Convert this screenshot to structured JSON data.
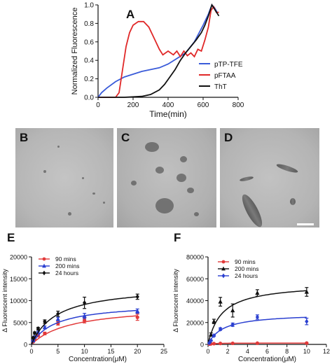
{
  "panel_labels": {
    "a": "A",
    "b": "B",
    "c": "C",
    "d": "D",
    "e": "E",
    "f": "F"
  },
  "chart_data": [
    {
      "id": "A",
      "type": "line",
      "xlabel": "Time(min)",
      "ylabel": "Normalized Fluorescence",
      "xlim": [
        0,
        800
      ],
      "ylim": [
        0.0,
        1.0
      ],
      "xticks": [
        0,
        200,
        400,
        600,
        800
      ],
      "yticks": [
        0.0,
        0.2,
        0.4,
        0.6,
        0.8,
        1.0
      ],
      "x_tick_labels": [
        "0",
        "200",
        "400",
        "600",
        "800"
      ],
      "y_tick_labels": [
        "0.0",
        "0.2",
        "0.4",
        "0.6",
        "0.8",
        "1.0"
      ],
      "legend": "right",
      "series": [
        {
          "name": "pTP-TFE",
          "color": "#3a5bd9",
          "x": [
            0,
            20,
            50,
            100,
            150,
            200,
            250,
            300,
            350,
            400,
            450,
            500,
            550,
            600,
            630,
            650,
            665,
            680
          ],
          "y": [
            0.0,
            0.05,
            0.1,
            0.17,
            0.22,
            0.25,
            0.28,
            0.3,
            0.32,
            0.36,
            0.42,
            0.48,
            0.6,
            0.78,
            0.9,
            1.0,
            0.97,
            0.92
          ]
        },
        {
          "name": "pFTAA",
          "color": "#e02828",
          "x": [
            0,
            50,
            100,
            120,
            140,
            160,
            180,
            200,
            230,
            260,
            290,
            320,
            350,
            370,
            400,
            430,
            450,
            470,
            490,
            510,
            530,
            550,
            570,
            590,
            610,
            630,
            645,
            660,
            675,
            690
          ],
          "y": [
            0.0,
            0.0,
            0.0,
            0.05,
            0.3,
            0.55,
            0.7,
            0.78,
            0.82,
            0.82,
            0.76,
            0.64,
            0.52,
            0.46,
            0.5,
            0.46,
            0.5,
            0.44,
            0.5,
            0.45,
            0.48,
            0.44,
            0.52,
            0.5,
            0.62,
            0.76,
            0.94,
            0.98,
            0.92,
            0.92
          ]
        },
        {
          "name": "ThT",
          "color": "#111111",
          "x": [
            0,
            150,
            250,
            300,
            350,
            380,
            410,
            440,
            470,
            500,
            530,
            560,
            590,
            610,
            630,
            650,
            670,
            690
          ],
          "y": [
            0.0,
            0.0,
            0.01,
            0.03,
            0.08,
            0.14,
            0.22,
            0.3,
            0.4,
            0.48,
            0.55,
            0.62,
            0.7,
            0.78,
            0.88,
            1.0,
            0.94,
            0.88
          ]
        }
      ]
    },
    {
      "id": "E",
      "type": "scatter",
      "xlabel": "Concentration(μM)",
      "ylabel": "Δ Fluorescent intensity",
      "xlim": [
        0,
        25
      ],
      "ylim": [
        0,
        20000
      ],
      "xticks": [
        0,
        5,
        10,
        15,
        20,
        25
      ],
      "yticks": [
        0,
        5000,
        10000,
        15000,
        20000
      ],
      "x_tick_labels": [
        "0",
        "5",
        "10",
        "15",
        "20",
        "25"
      ],
      "y_tick_labels": [
        "0",
        "5000",
        "10000",
        "15000",
        "20000"
      ],
      "legend": "top-left",
      "series": [
        {
          "name": "90 mins",
          "color": "#e23a3a",
          "marker": "circle",
          "x": [
            0.3,
            0.6,
            1.25,
            2.5,
            5,
            10,
            20
          ],
          "y": [
            600,
            1200,
            2000,
            2500,
            4800,
            5500,
            6200
          ],
          "err": [
            100,
            150,
            200,
            300,
            400,
            600,
            700
          ],
          "fit_vmax": 9000,
          "fit_k": 7.5
        },
        {
          "name": "200 mins",
          "color": "#2a3fd0",
          "marker": "triangle",
          "x": [
            0.3,
            0.6,
            1.25,
            2.5,
            5,
            10,
            20
          ],
          "y": [
            900,
            1800,
            2800,
            3900,
            5800,
            6500,
            7600
          ],
          "err": [
            100,
            150,
            200,
            300,
            400,
            600,
            500
          ],
          "fit_vmax": 9500,
          "fit_k": 4.5
        },
        {
          "name": "24 hours",
          "color": "#111111",
          "marker": "diamond",
          "x": [
            0.3,
            0.6,
            1.25,
            2.5,
            5,
            10,
            20
          ],
          "y": [
            1500,
            2600,
            3600,
            5200,
            7000,
            9500,
            10900
          ],
          "err": [
            200,
            250,
            300,
            400,
            600,
            1300,
            600
          ],
          "fit_vmax": 13500,
          "fit_k": 4.8
        }
      ]
    },
    {
      "id": "F",
      "type": "scatter",
      "xlabel": "Concentration(μM)",
      "ylabel": "Δ Fluorescent intensity",
      "xlim": [
        0,
        12
      ],
      "ylim": [
        0,
        80000
      ],
      "xticks": [
        0,
        2,
        4,
        6,
        8,
        10,
        12
      ],
      "yticks": [
        0,
        20000,
        40000,
        60000,
        80000
      ],
      "x_tick_labels": [
        "0",
        "2",
        "4",
        "6",
        "8",
        "10",
        "12"
      ],
      "y_tick_labels": [
        "0",
        "20000",
        "40000",
        "60000",
        "80000"
      ],
      "legend": "top-left",
      "series": [
        {
          "name": "90 mins",
          "color": "#e23a3a",
          "marker": "circle",
          "x": [
            0.15,
            0.3,
            0.6,
            1.25,
            2.5,
            5,
            10
          ],
          "y": [
            300,
            500,
            700,
            900,
            1000,
            1100,
            1200
          ],
          "err": [
            100,
            100,
            150,
            150,
            200,
            200,
            300
          ],
          "fit_vmax": 1300,
          "fit_k": 0.5
        },
        {
          "name": "200 mins",
          "color": "#111111",
          "marker": "triangle",
          "x": [
            0.15,
            0.3,
            0.6,
            1.25,
            2.5,
            5,
            10
          ],
          "y": [
            3000,
            9000,
            21000,
            39000,
            31000,
            47000,
            48000
          ],
          "err": [
            800,
            1500,
            2000,
            4000,
            6000,
            3000,
            4000
          ],
          "fit_vmax": 56000,
          "fit_k": 1.4
        },
        {
          "name": "24 hours",
          "color": "#2a3fd0",
          "marker": "diamond",
          "x": [
            0.15,
            0.3,
            0.6,
            1.25,
            2.5,
            5,
            10
          ],
          "y": [
            1500,
            3500,
            8000,
            14000,
            18000,
            25000,
            21000
          ],
          "err": [
            300,
            500,
            800,
            1200,
            1500,
            2000,
            3000
          ],
          "fit_vmax": 28500,
          "fit_k": 1.5
        }
      ]
    }
  ]
}
